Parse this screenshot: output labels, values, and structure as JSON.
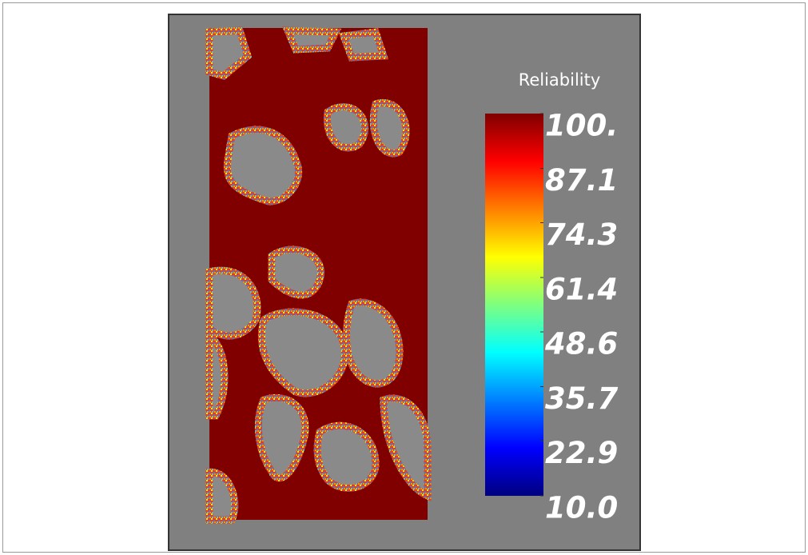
{
  "chart_data": {
    "type": "heatmap",
    "colorbar_title": "Reliability",
    "colormap": "jet",
    "clim": [
      10,
      100
    ],
    "cticks": [
      {
        "value": 100,
        "label": "100."
      },
      87.1,
      74.3,
      61.4,
      48.6,
      35.7,
      22.9,
      {
        "value": 10,
        "label": "10.0"
      }
    ]
  }
}
